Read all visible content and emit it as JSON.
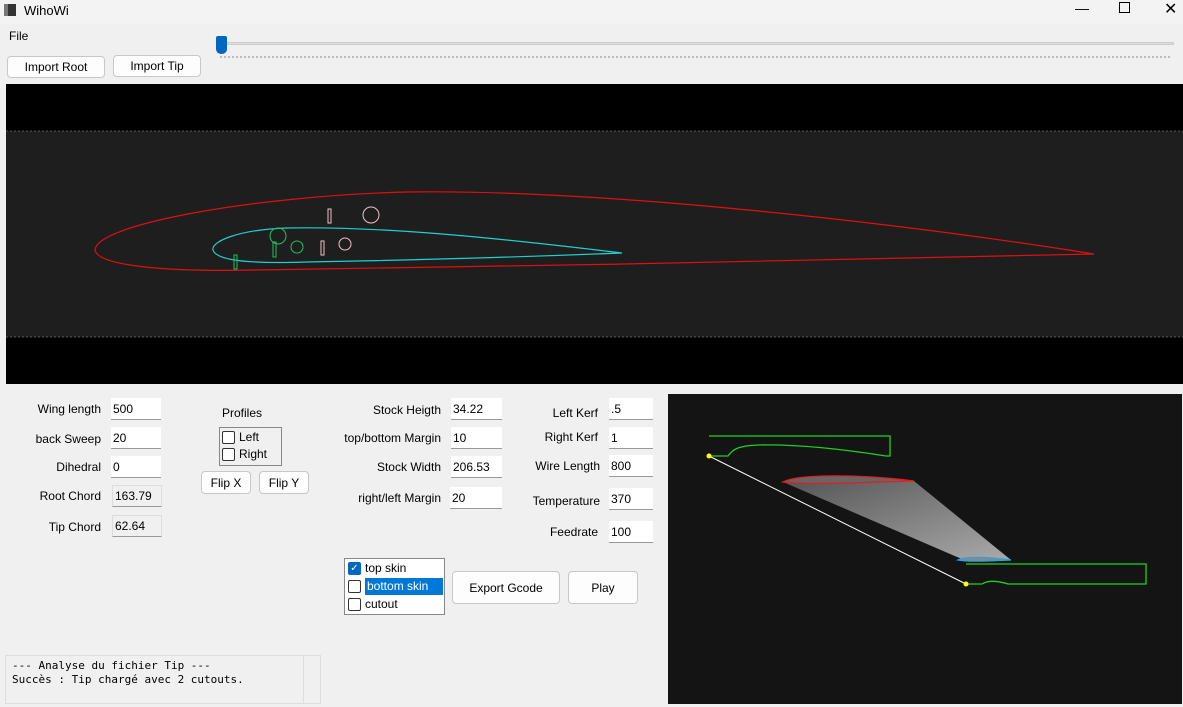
{
  "window": {
    "title": "WihoWi"
  },
  "menu": {
    "file": "File"
  },
  "toolbar": {
    "import_root": "Import Root",
    "import_tip": "Import Tip",
    "slider_value": 0
  },
  "params": {
    "wing_length": {
      "label": "Wing length",
      "value": "500"
    },
    "back_sweep": {
      "label": "back Sweep",
      "value": "20"
    },
    "dihedral": {
      "label": "Dihedral",
      "value": "0"
    },
    "root_chord": {
      "label": "Root Chord",
      "value": "163.79"
    },
    "tip_chord": {
      "label": "Tip Chord",
      "value": "62.64"
    }
  },
  "profiles": {
    "title": "Profiles",
    "left": "Left",
    "right": "Right",
    "flip_x": "Flip X",
    "flip_y": "Flip Y"
  },
  "stock": {
    "height": {
      "label": "Stock Heigth",
      "value": "34.22"
    },
    "tb_margin": {
      "label": "top/bottom Margin",
      "value": "10"
    },
    "width": {
      "label": "Stock Width",
      "value": "206.53"
    },
    "rl_margin": {
      "label": "right/left Margin",
      "value": "20"
    }
  },
  "machine": {
    "left_kerf": {
      "label": "Left Kerf",
      "value": ".5"
    },
    "right_kerf": {
      "label": "Right Kerf",
      "value": "1"
    },
    "wire_length": {
      "label": "Wire Length",
      "value": "800"
    },
    "temperature": {
      "label": "Temperature",
      "value": "370"
    },
    "feedrate": {
      "label": "Feedrate",
      "value": "100"
    }
  },
  "cut_list": [
    {
      "label": "top skin",
      "checked": true
    },
    {
      "label": "bottom skin",
      "checked": false,
      "selected": true
    },
    {
      "label": "cutout",
      "checked": false
    }
  ],
  "actions": {
    "export": "Export Gcode",
    "play": "Play"
  },
  "log": {
    "line1": "--- Analyse du fichier Tip ---",
    "line2": "Succès : Tip chargé avec 2 cutouts."
  },
  "colors": {
    "root": "#e01010",
    "tip": "#20d0d0",
    "cutout_root": "#f0c0c8",
    "cutout_tip": "#20c060",
    "stock": "#20d020",
    "accent": "#0067c0"
  }
}
